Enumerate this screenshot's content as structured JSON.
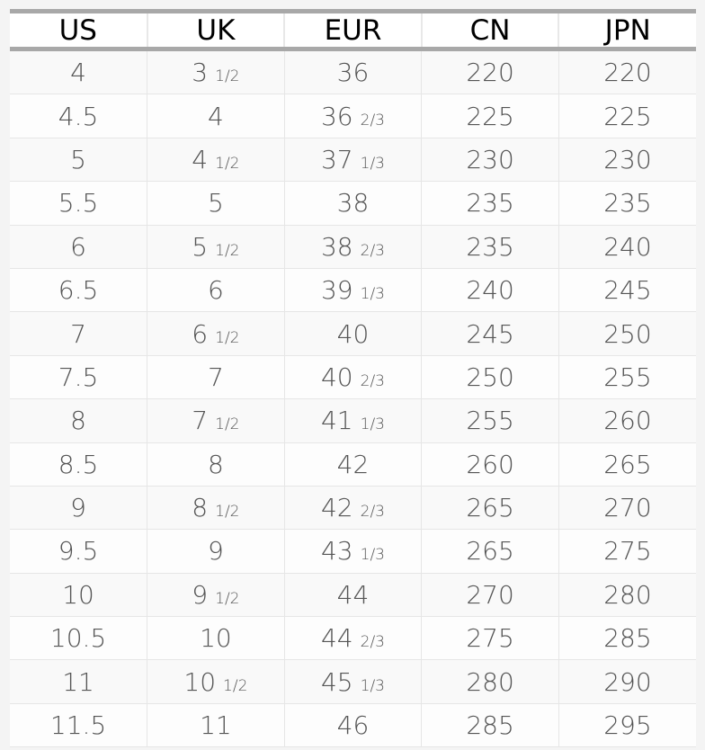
{
  "headers": [
    "US",
    "UK",
    "EUR",
    "CN",
    "JPN"
  ],
  "rows": [
    [
      {
        "w": "4"
      },
      {
        "w": "3",
        "f": "1/2"
      },
      {
        "w": "36"
      },
      {
        "w": "220"
      },
      {
        "w": "220"
      }
    ],
    [
      {
        "w": "4.5"
      },
      {
        "w": "4"
      },
      {
        "w": "36",
        "f": "2/3"
      },
      {
        "w": "225"
      },
      {
        "w": "225"
      }
    ],
    [
      {
        "w": "5"
      },
      {
        "w": "4",
        "f": "1/2"
      },
      {
        "w": "37",
        "f": "1/3"
      },
      {
        "w": "230"
      },
      {
        "w": "230"
      }
    ],
    [
      {
        "w": "5.5"
      },
      {
        "w": "5"
      },
      {
        "w": "38"
      },
      {
        "w": "235"
      },
      {
        "w": "235"
      }
    ],
    [
      {
        "w": "6"
      },
      {
        "w": "5",
        "f": "1/2"
      },
      {
        "w": "38",
        "f": "2/3"
      },
      {
        "w": "235"
      },
      {
        "w": "240"
      }
    ],
    [
      {
        "w": "6.5"
      },
      {
        "w": "6"
      },
      {
        "w": "39",
        "f": "1/3"
      },
      {
        "w": "240"
      },
      {
        "w": "245"
      }
    ],
    [
      {
        "w": "7"
      },
      {
        "w": "6",
        "f": "1/2"
      },
      {
        "w": "40"
      },
      {
        "w": "245"
      },
      {
        "w": "250"
      }
    ],
    [
      {
        "w": "7.5"
      },
      {
        "w": "7"
      },
      {
        "w": "40",
        "f": "2/3"
      },
      {
        "w": "250"
      },
      {
        "w": "255"
      }
    ],
    [
      {
        "w": "8"
      },
      {
        "w": "7",
        "f": "1/2"
      },
      {
        "w": "41",
        "f": "1/3"
      },
      {
        "w": "255"
      },
      {
        "w": "260"
      }
    ],
    [
      {
        "w": "8.5"
      },
      {
        "w": "8"
      },
      {
        "w": "42"
      },
      {
        "w": "260"
      },
      {
        "w": "265"
      }
    ],
    [
      {
        "w": "9"
      },
      {
        "w": "8",
        "f": "1/2"
      },
      {
        "w": "42",
        "f": "2/3"
      },
      {
        "w": "265"
      },
      {
        "w": "270"
      }
    ],
    [
      {
        "w": "9.5"
      },
      {
        "w": "9"
      },
      {
        "w": "43",
        "f": "1/3"
      },
      {
        "w": "265"
      },
      {
        "w": "275"
      }
    ],
    [
      {
        "w": "10"
      },
      {
        "w": "9",
        "f": "1/2"
      },
      {
        "w": "44"
      },
      {
        "w": "270"
      },
      {
        "w": "280"
      }
    ],
    [
      {
        "w": "10.5"
      },
      {
        "w": "10"
      },
      {
        "w": "44",
        "f": "2/3"
      },
      {
        "w": "275"
      },
      {
        "w": "285"
      }
    ],
    [
      {
        "w": "11"
      },
      {
        "w": "10",
        "f": "1/2"
      },
      {
        "w": "45",
        "f": "1/3"
      },
      {
        "w": "280"
      },
      {
        "w": "290"
      }
    ],
    [
      {
        "w": "11.5"
      },
      {
        "w": "11"
      },
      {
        "w": "46"
      },
      {
        "w": "285"
      },
      {
        "w": "295"
      }
    ]
  ]
}
